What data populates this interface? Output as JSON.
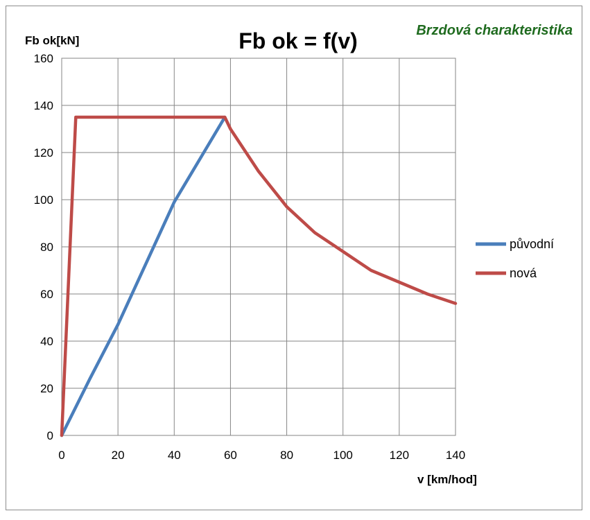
{
  "chart_data": {
    "type": "line",
    "title": "Fb ok = f(v)",
    "subtitle": "Brzdová charakteristika",
    "ylabel": "Fb ok[kN]",
    "xlabel": "v [km/hod]",
    "xlim": [
      0,
      140
    ],
    "ylim": [
      0,
      160
    ],
    "xticks": [
      "0",
      "20",
      "40",
      "60",
      "80",
      "100",
      "120",
      "140"
    ],
    "yticks": [
      "0",
      "20",
      "40",
      "60",
      "80",
      "100",
      "120",
      "140",
      "160"
    ],
    "grid": true,
    "legend_position": "right",
    "series": [
      {
        "name": "původní",
        "color": "#4a7ebb",
        "x": [
          0,
          10,
          20,
          30,
          40,
          50,
          58
        ],
        "y": [
          0,
          24,
          47,
          73,
          99,
          119,
          135
        ]
      },
      {
        "name": "nová",
        "color": "#be4b48",
        "x": [
          0,
          5,
          58,
          60,
          70,
          80,
          90,
          100,
          110,
          120,
          130,
          140
        ],
        "y": [
          0,
          135,
          135,
          130,
          112,
          97,
          86,
          78,
          70,
          65,
          60,
          56
        ]
      }
    ]
  }
}
